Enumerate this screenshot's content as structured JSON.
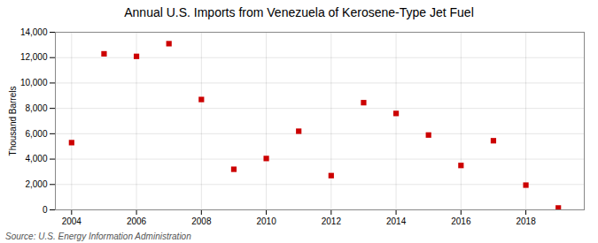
{
  "chart_data": {
    "type": "scatter",
    "title": "Annual U.S. Imports from Venezuela of Kerosene-Type Jet Fuel",
    "ylabel": "Thousand Barrels",
    "source": "Source: U.S. Energy Information Administration",
    "x": [
      2004,
      2005,
      2006,
      2007,
      2008,
      2009,
      2010,
      2011,
      2012,
      2013,
      2014,
      2015,
      2016,
      2017,
      2018,
      2019
    ],
    "values": [
      5300,
      12300,
      12100,
      13100,
      8700,
      3200,
      4050,
      6200,
      2700,
      8450,
      7600,
      5900,
      3500,
      5450,
      1950,
      150
    ],
    "color": "#cc0000",
    "marker": "square",
    "xlim": [
      2003.5,
      2019.8
    ],
    "xticks": [
      2004,
      2006,
      2008,
      2010,
      2012,
      2014,
      2016,
      2018
    ],
    "ylim": [
      0,
      14000
    ],
    "yticks": [
      0,
      {
        "value": 2000,
        "label": "2,000"
      },
      {
        "value": 4000,
        "label": "4,000"
      },
      {
        "value": 6000,
        "label": "6,000"
      },
      {
        "value": 8000,
        "label": "8,000"
      },
      {
        "value": 10000,
        "label": "10,000"
      },
      {
        "value": 12000,
        "label": "12,000"
      },
      {
        "value": 14000,
        "label": "14,000"
      }
    ],
    "grid": true
  }
}
